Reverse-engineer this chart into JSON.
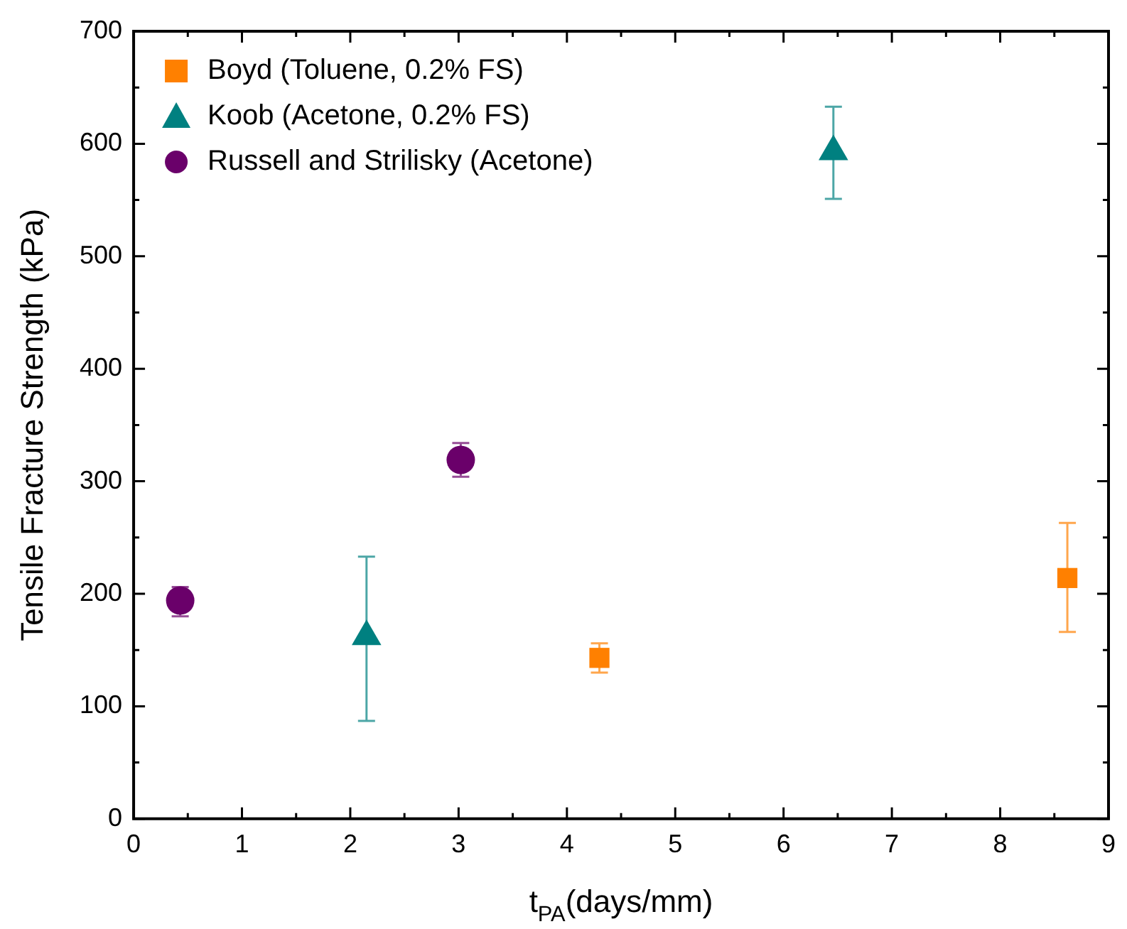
{
  "chart_data": {
    "type": "scatter",
    "xlabel": "t$_{PA}$(days/mm)",
    "ylabel": "Tensile Fracture Strength (kPa)",
    "xlim": [
      0,
      9
    ],
    "xticks": [
      0,
      {
        "value": 0.5,
        "label": null
      },
      1,
      {
        "value": 1.5,
        "label": null
      },
      2,
      {
        "value": 2.5,
        "label": null
      },
      3,
      {
        "value": 3.5,
        "label": null
      },
      4,
      {
        "value": 4.5,
        "label": null
      },
      5,
      {
        "value": 5.5,
        "label": null
      },
      6,
      {
        "value": 6.5,
        "label": null
      },
      7,
      {
        "value": 7.5,
        "label": null
      },
      8,
      {
        "value": 8.5,
        "label": null
      },
      9
    ],
    "ylim": [
      0,
      700
    ],
    "yticks": [
      0,
      {
        "value": 50,
        "label": null
      },
      100,
      {
        "value": 150,
        "label": null
      },
      200,
      {
        "value": 250,
        "label": null
      },
      300,
      {
        "value": 350,
        "label": null
      },
      400,
      {
        "value": 450,
        "label": null
      },
      500,
      {
        "value": 550,
        "label": null
      },
      600,
      {
        "value": 650,
        "label": null
      },
      700
    ],
    "legend": "top left",
    "series": [
      {
        "name": "Boyd (Toluene, 0.2% FS)",
        "color": "#ff8000",
        "marker": "square",
        "x": [
          4.3,
          8.62
        ],
        "values": [
          143,
          214
        ],
        "errors": [
          [
            130,
            156
          ],
          [
            166,
            263
          ]
        ]
      },
      {
        "name": "Koob (Acetone, 0.2% FS)",
        "color": "#008080",
        "marker": "triangle",
        "x": [
          2.15,
          6.46
        ],
        "values": [
          162,
          593
        ],
        "errors": [
          [
            87,
            233
          ],
          [
            551,
            633
          ]
        ]
      },
      {
        "name": "Russell and Strilisky (Acetone)",
        "color": "#6a006a",
        "marker": "circle",
        "x": [
          0.43,
          3.02
        ],
        "values": [
          194,
          319
        ],
        "errors": [
          [
            180,
            206
          ],
          [
            304,
            334
          ]
        ]
      }
    ]
  }
}
